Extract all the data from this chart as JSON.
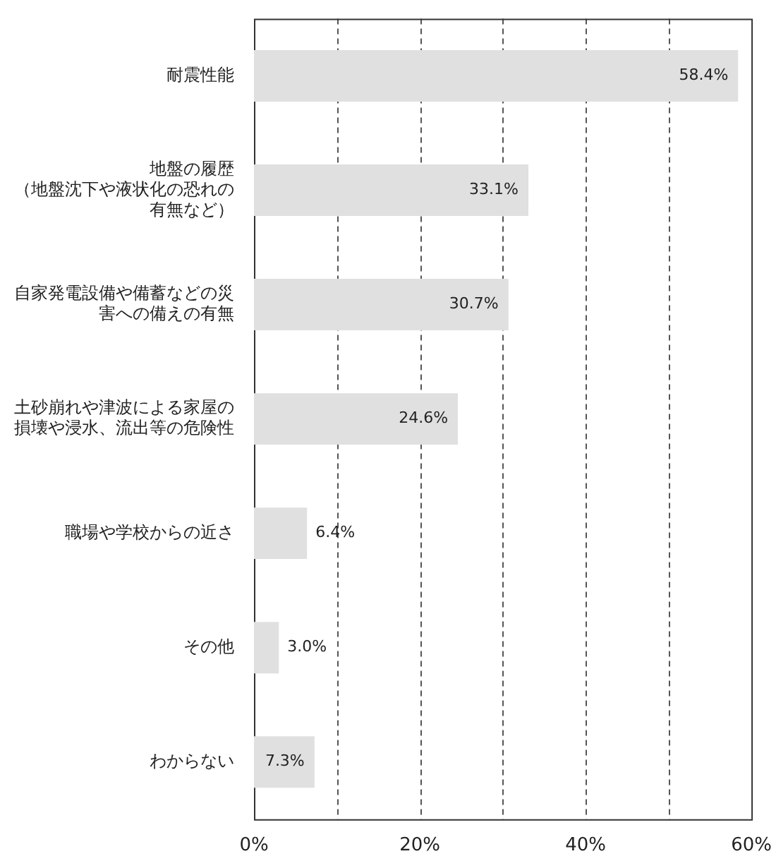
{
  "chart_data": {
    "type": "bar",
    "orientation": "horizontal",
    "categories": [
      "耐震性能",
      "地盤の履歴（地盤沈下や液状化の恐れの有無など）",
      "自家発電設備や備蓄などの災害への備えの有無",
      "土砂崩れや津波による家屋の損壊や浸水、流出等の危険性",
      "職場や学校からの近さ",
      "その他",
      "わからない"
    ],
    "values": [
      58.4,
      33.1,
      30.7,
      24.6,
      6.4,
      3.0,
      7.3
    ],
    "value_labels": [
      "58.4%",
      "33.1%",
      "30.7%",
      "24.6%",
      "6.4%",
      "3.0%",
      "7.3%"
    ],
    "color": "#e0e0e0",
    "xlim": [
      0,
      60
    ],
    "xticks": [
      {
        "value": 0,
        "label": "0%"
      },
      {
        "value": 10,
        "label": null
      },
      {
        "value": 20,
        "label": "20%"
      },
      {
        "value": 30,
        "label": null
      },
      {
        "value": 40,
        "label": "40%"
      },
      {
        "value": 50,
        "label": null
      },
      {
        "value": 60,
        "label": "60%"
      }
    ],
    "grid": "x",
    "legend": false
  }
}
